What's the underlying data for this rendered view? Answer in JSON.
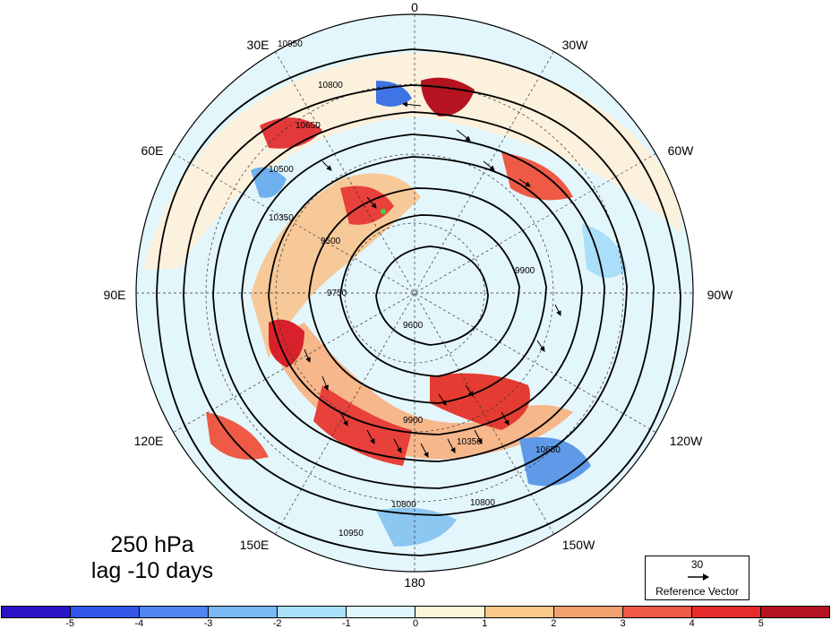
{
  "title": {
    "line1": "250 hPa",
    "line2": "lag -10 days"
  },
  "longitude_labels": [
    {
      "text": "0",
      "key": "top"
    },
    {
      "text": "30W",
      "key": "tr1"
    },
    {
      "text": "60W",
      "key": "tr2"
    },
    {
      "text": "90W",
      "key": "right"
    },
    {
      "text": "120W",
      "key": "br1"
    },
    {
      "text": "150W",
      "key": "br2"
    },
    {
      "text": "180",
      "key": "bottom"
    },
    {
      "text": "150E",
      "key": "bl2"
    },
    {
      "text": "120E",
      "key": "bl1"
    },
    {
      "text": "90E",
      "key": "left"
    },
    {
      "text": "60E",
      "key": "tl2"
    },
    {
      "text": "30E",
      "key": "tl1"
    }
  ],
  "contour_labels": [
    "10950",
    "10800",
    "10650",
    "10500",
    "10350",
    "9900",
    "9750",
    "9600",
    "9500",
    "9900",
    "10800",
    "10950",
    "10350",
    "10650",
    "10800"
  ],
  "reference_vector": {
    "value": "30",
    "label": "Reference Vector"
  },
  "colorbar": {
    "colors": [
      "#2b14c8",
      "#3356e8",
      "#4f86f0",
      "#77b8f5",
      "#a9dff8",
      "#dff5fc",
      "#fdf5da",
      "#f9c98a",
      "#f3a06f",
      "#ee5a46",
      "#e52b2b",
      "#b4131f"
    ],
    "ticks": [
      "-5",
      "-4",
      "-3",
      "-2",
      "-1",
      "0",
      "1",
      "2",
      "3",
      "4",
      "5"
    ]
  }
}
